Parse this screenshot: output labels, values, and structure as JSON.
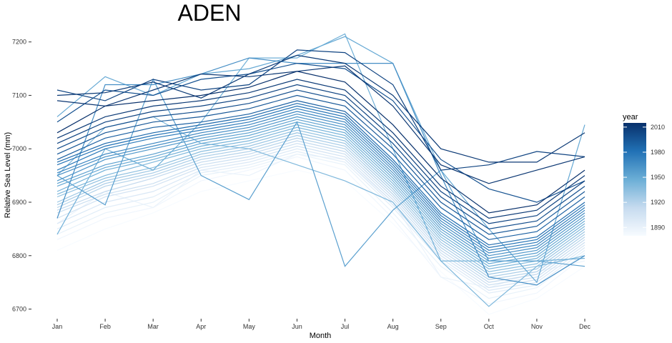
{
  "chart_data": {
    "type": "line",
    "title": "ADEN",
    "xlabel": "Month",
    "ylabel": "Relative Sea Level (mm)",
    "categories": [
      "Jan",
      "Feb",
      "Mar",
      "Apr",
      "May",
      "Jun",
      "Jul",
      "Aug",
      "Sep",
      "Oct",
      "Nov",
      "Dec"
    ],
    "ylim": [
      6690,
      7225
    ],
    "yticks": [
      6700,
      6800,
      6900,
      7000,
      7100,
      7200
    ],
    "grid": false,
    "legend": {
      "title": "year",
      "placement": "right",
      "type": "colorbar",
      "range": [
        1880,
        2015
      ],
      "ticks": [
        1890,
        1920,
        1950,
        1980,
        2010
      ],
      "colors": [
        "#f7fbff",
        "#c6dbef",
        "#6baed6",
        "#2171b5",
        "#08306b"
      ]
    },
    "series_note_color_by": "year",
    "years_from": 1880,
    "years_to": 2015,
    "series": [
      {
        "year": 1880,
        "values": [
          6810,
          6850,
          6880,
          6920,
          6940,
          6960,
          6940,
          6860,
          6770,
          6690,
          6720,
          6780
        ]
      },
      {
        "year": 1885,
        "values": [
          6830,
          6870,
          6890,
          6940,
          6960,
          6985,
          6960,
          6870,
          6760,
          6710,
          6730,
          6800
        ]
      },
      {
        "year": 1890,
        "values": [
          6840,
          6880,
          6900,
          6950,
          6965,
          6990,
          6970,
          6880,
          6780,
          6720,
          6740,
          6805
        ]
      },
      {
        "year": 1895,
        "values": [
          6850,
          6890,
          6910,
          6955,
          6970,
          6995,
          6975,
          6890,
          6790,
          6730,
          6745,
          6810
        ]
      },
      {
        "year": 1900,
        "values": [
          6860,
          6900,
          6920,
          6960,
          6975,
          7000,
          6980,
          6895,
          6795,
          6735,
          6750,
          6815
        ]
      },
      {
        "year": 1905,
        "values": [
          6870,
          6910,
          6930,
          6965,
          6980,
          7005,
          6985,
          6900,
          6800,
          6740,
          6755,
          6820
        ]
      },
      {
        "year": 1910,
        "values": [
          6880,
          6915,
          6935,
          6970,
          6985,
          7010,
          6990,
          6905,
          6805,
          6745,
          6760,
          6825
        ]
      },
      {
        "year": 1915,
        "values": [
          6885,
          6920,
          6945,
          6975,
          6990,
          7015,
          6995,
          6910,
          6810,
          6750,
          6765,
          6830
        ]
      },
      {
        "year": 1920,
        "values": [
          6890,
          6930,
          6950,
          6980,
          6995,
          7020,
          7000,
          6915,
          6815,
          6755,
          6770,
          6835
        ]
      },
      {
        "year": 1925,
        "values": [
          6895,
          6935,
          6955,
          6985,
          7000,
          7025,
          7005,
          6920,
          6820,
          6760,
          6775,
          6840
        ]
      },
      {
        "year": 1930,
        "values": [
          6900,
          6940,
          6960,
          6990,
          7005,
          7030,
          7010,
          6925,
          6825,
          6765,
          6780,
          6845
        ]
      },
      {
        "year": 1935,
        "values": [
          6910,
          6945,
          6965,
          6995,
          7010,
          7035,
          7015,
          6930,
          6830,
          6770,
          6785,
          6850
        ]
      },
      {
        "year": 1940,
        "values": [
          6915,
          6950,
          6975,
          7000,
          7015,
          7040,
          7020,
          6935,
          6835,
          6775,
          6790,
          6855
        ]
      },
      {
        "year": 1945,
        "values": [
          6920,
          6960,
          6980,
          7005,
          7020,
          7045,
          7025,
          6940,
          6840,
          6780,
          6795,
          6860
        ]
      },
      {
        "year": 1950,
        "values": [
          6930,
          6965,
          6985,
          7010,
          7025,
          7050,
          7030,
          6945,
          6845,
          6785,
          6800,
          6865
        ]
      },
      {
        "year": 1955,
        "values": [
          6935,
          6970,
          6990,
          7015,
          7030,
          7055,
          7035,
          6950,
          6850,
          6790,
          6805,
          6870
        ]
      },
      {
        "year": 1960,
        "values": [
          6940,
          6980,
          7000,
          7020,
          7035,
          7060,
          7040,
          6955,
          6855,
          6795,
          6810,
          6875
        ]
      },
      {
        "year": 1965,
        "values": [
          6950,
          6985,
          7005,
          7025,
          7040,
          7065,
          7045,
          6960,
          6860,
          6800,
          6815,
          6880
        ]
      },
      {
        "year": 1970,
        "values": [
          6955,
          6990,
          7010,
          7030,
          7045,
          7070,
          7050,
          6965,
          6865,
          6805,
          6820,
          6885
        ]
      },
      {
        "year": 1975,
        "values": [
          6960,
          7000,
          7020,
          7035,
          7050,
          7075,
          7055,
          6970,
          6870,
          6810,
          6825,
          6890
        ]
      },
      {
        "year": 1980,
        "values": [
          6970,
          7005,
          7025,
          7040,
          7055,
          7080,
          7060,
          6975,
          6875,
          6815,
          6830,
          6895
        ]
      },
      {
        "year": 1985,
        "values": [
          6975,
          7010,
          7030,
          7045,
          7060,
          7085,
          7065,
          6980,
          6880,
          6820,
          6835,
          6900
        ]
      },
      {
        "year": 1990,
        "values": [
          6980,
          7020,
          7040,
          7050,
          7065,
          7090,
          7070,
          6990,
          6890,
          6830,
          6845,
          6910
        ]
      },
      {
        "year": 1995,
        "values": [
          6990,
          7030,
          7050,
          7060,
          7075,
          7100,
          7080,
          7000,
          6900,
          6840,
          6855,
          6920
        ]
      },
      {
        "year": 2000,
        "values": [
          7000,
          7040,
          7060,
          7070,
          7085,
          7110,
          7090,
          7010,
          6910,
          6850,
          6865,
          6930
        ]
      },
      {
        "year": 2005,
        "values": [
          7010,
          7050,
          7070,
          7080,
          7095,
          7120,
          7100,
          7020,
          6920,
          6860,
          6875,
          6940
        ]
      },
      {
        "year": 2010,
        "values": [
          7020,
          7060,
          7080,
          7090,
          7105,
          7130,
          7110,
          7030,
          6930,
          6870,
          6885,
          6950
        ]
      },
      {
        "year": 2015,
        "values": [
          7030,
          7080,
          7090,
          7100,
          7115,
          7145,
          7125,
          7045,
          6945,
          6880,
          6895,
          6960
        ]
      },
      {
        "year": 1950,
        "values": [
          7060,
          7135,
          7100,
          7140,
          7150,
          7175,
          7210,
          7160,
          6960,
          6850,
          6750,
          7045
        ]
      },
      {
        "year": 1955,
        "values": [
          6950,
          6895,
          7130,
          6950,
          6905,
          7050,
          6780,
          6885,
          6960,
          6790,
          6790,
          6780
        ]
      },
      {
        "year": 1945,
        "values": [
          6840,
          7000,
          6960,
          7050,
          7170,
          7170,
          7215,
          7000,
          6790,
          6790,
          6790,
          6795
        ]
      },
      {
        "year": 1940,
        "values": [
          6950,
          7040,
          7060,
          7010,
          7000,
          6970,
          6940,
          6900,
          6790,
          6705,
          6780,
          6800
        ]
      },
      {
        "year": 1965,
        "values": [
          6870,
          7120,
          7120,
          7140,
          7170,
          7160,
          7160,
          7160,
          6950,
          6760,
          6745,
          6800
        ]
      },
      {
        "year": 2005,
        "values": [
          7110,
          7090,
          7130,
          7110,
          7120,
          7185,
          7180,
          7120,
          6960,
          6970,
          6995,
          6985
        ]
      },
      {
        "year": 2010,
        "values": [
          7100,
          7105,
          7125,
          7095,
          7140,
          7175,
          7160,
          7100,
          7000,
          6975,
          6975,
          7030
        ]
      },
      {
        "year": 1998,
        "values": [
          7050,
          7110,
          7100,
          7130,
          7140,
          7160,
          7150,
          7090,
          6980,
          6925,
          6900,
          6940
        ]
      },
      {
        "year": 2012,
        "values": [
          7090,
          7080,
          7110,
          7140,
          7135,
          7145,
          7155,
          7080,
          6970,
          6935,
          6960,
          6985
        ]
      },
      {
        "year": 1888,
        "values": [
          6860,
          6920,
          6890,
          6960,
          6950,
          6990,
          6980,
          6900,
          6760,
          6740,
          6770,
          6790
        ]
      }
    ]
  }
}
